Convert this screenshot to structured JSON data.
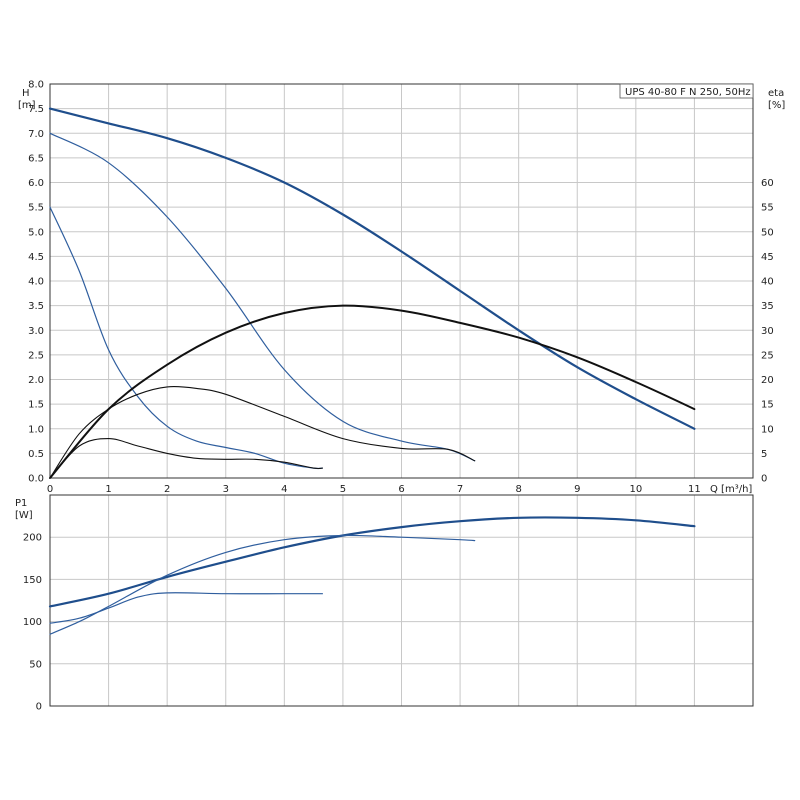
{
  "chart_data": [
    {
      "type": "line",
      "title": "UPS 40-80 F N 250, 50Hz",
      "xlabel": "Q [m³/h]",
      "ylabel_left": {
        "name": "H",
        "unit": "[m]"
      },
      "ylabel_right": {
        "name": "eta",
        "unit": "[%]"
      },
      "xlim": [
        0,
        12
      ],
      "ylim_left": [
        0,
        8.0
      ],
      "ylim_right": [
        0,
        80
      ],
      "x_ticks": [
        "0",
        "1",
        "2",
        "3",
        "4",
        "5",
        "6",
        "7",
        "8",
        "9",
        "10",
        "11"
      ],
      "y_ticks_left": [
        "0.0",
        "0.5",
        "1.0",
        "1.5",
        "2.0",
        "2.5",
        "3.0",
        "3.5",
        "4.0",
        "4.5",
        "5.0",
        "5.5",
        "6.0",
        "6.5",
        "7.0",
        "7.5",
        "8.0"
      ],
      "y_ticks_right": [
        "0",
        "5",
        "10",
        "15",
        "20",
        "25",
        "30",
        "35",
        "40",
        "45",
        "50",
        "55",
        "60"
      ],
      "grid": true,
      "series": [
        {
          "axis": "left",
          "color": "#1f4e8c",
          "width": 2.2,
          "points": [
            [
              0,
              7.5
            ],
            [
              1,
              7.2
            ],
            [
              2,
              6.9
            ],
            [
              3,
              6.5
            ],
            [
              4,
              6.0
            ],
            [
              5,
              5.35
            ],
            [
              6,
              4.6
            ],
            [
              7,
              3.8
            ],
            [
              8,
              3.0
            ],
            [
              9,
              2.25
            ],
            [
              10,
              1.6
            ],
            [
              11,
              1.0
            ]
          ]
        },
        {
          "axis": "left",
          "color": "#2f5e9e",
          "width": 1.2,
          "points": [
            [
              0,
              7.0
            ],
            [
              1,
              6.4
            ],
            [
              2,
              5.3
            ],
            [
              3,
              3.85
            ],
            [
              4,
              2.2
            ],
            [
              5,
              1.15
            ],
            [
              6,
              0.75
            ],
            [
              6.8,
              0.58
            ],
            [
              7.25,
              0.35
            ]
          ]
        },
        {
          "axis": "left",
          "color": "#2f5e9e",
          "width": 1.2,
          "points": [
            [
              0,
              5.5
            ],
            [
              0.5,
              4.2
            ],
            [
              1,
              2.6
            ],
            [
              1.5,
              1.65
            ],
            [
              2,
              1.05
            ],
            [
              2.5,
              0.75
            ],
            [
              3,
              0.62
            ],
            [
              3.5,
              0.5
            ],
            [
              4,
              0.3
            ],
            [
              4.5,
              0.2
            ],
            [
              4.65,
              0.2
            ]
          ]
        },
        {
          "axis": "right",
          "color": "#111111",
          "width": 2.0,
          "points": [
            [
              0,
              0
            ],
            [
              1,
              14
            ],
            [
              2,
              23
            ],
            [
              3,
              29.5
            ],
            [
              4,
              33.5
            ],
            [
              5,
              35
            ],
            [
              6,
              34
            ],
            [
              7,
              31.5
            ],
            [
              8,
              28.5
            ],
            [
              9,
              24.5
            ],
            [
              10,
              19.5
            ],
            [
              11,
              14
            ]
          ]
        },
        {
          "axis": "right",
          "color": "#111111",
          "width": 1.1,
          "points": [
            [
              0,
              0
            ],
            [
              0.5,
              9
            ],
            [
              1,
              14
            ],
            [
              1.5,
              17
            ],
            [
              2,
              18.5
            ],
            [
              2.5,
              18.2
            ],
            [
              3,
              17
            ],
            [
              4,
              12.5
            ],
            [
              5,
              8
            ],
            [
              6,
              6
            ],
            [
              6.8,
              5.8
            ],
            [
              7.25,
              3.5
            ]
          ]
        },
        {
          "axis": "right",
          "color": "#111111",
          "width": 1.1,
          "points": [
            [
              0,
              0
            ],
            [
              0.5,
              6.5
            ],
            [
              1,
              8
            ],
            [
              1.5,
              6.5
            ],
            [
              2,
              5
            ],
            [
              2.5,
              4
            ],
            [
              3,
              3.8
            ],
            [
              3.5,
              3.8
            ],
            [
              4,
              3.2
            ],
            [
              4.5,
              2
            ],
            [
              4.65,
              2
            ]
          ]
        }
      ]
    },
    {
      "type": "line",
      "ylabel": {
        "name": "P1",
        "unit": "[W]"
      },
      "xlim": [
        0,
        12
      ],
      "ylim": [
        0,
        250
      ],
      "y_ticks": [
        "0",
        "50",
        "100",
        "150",
        "200"
      ],
      "grid": true,
      "series": [
        {
          "color": "#1f4e8c",
          "width": 2.2,
          "points": [
            [
              0,
              118
            ],
            [
              1,
              133
            ],
            [
              2,
              153
            ],
            [
              3,
              171
            ],
            [
              4,
              188
            ],
            [
              5,
              202
            ],
            [
              6,
              212
            ],
            [
              7,
              219
            ],
            [
              8,
              223
            ],
            [
              9,
              223
            ],
            [
              10,
              220
            ],
            [
              11,
              213
            ]
          ]
        },
        {
          "color": "#2f5e9e",
          "width": 1.2,
          "points": [
            [
              0,
              85
            ],
            [
              0.5,
              100
            ],
            [
              1,
              118
            ],
            [
              2,
              155
            ],
            [
              3,
              182
            ],
            [
              4,
              197
            ],
            [
              5,
              202
            ],
            [
              6,
              200
            ],
            [
              7,
              197
            ],
            [
              7.25,
              196
            ]
          ]
        },
        {
          "color": "#2f5e9e",
          "width": 1.2,
          "points": [
            [
              0,
              98
            ],
            [
              0.5,
              104
            ],
            [
              1,
              116
            ],
            [
              1.5,
              129
            ],
            [
              2,
              134
            ],
            [
              3,
              133
            ],
            [
              4,
              133
            ],
            [
              4.65,
              133
            ]
          ]
        }
      ]
    }
  ]
}
